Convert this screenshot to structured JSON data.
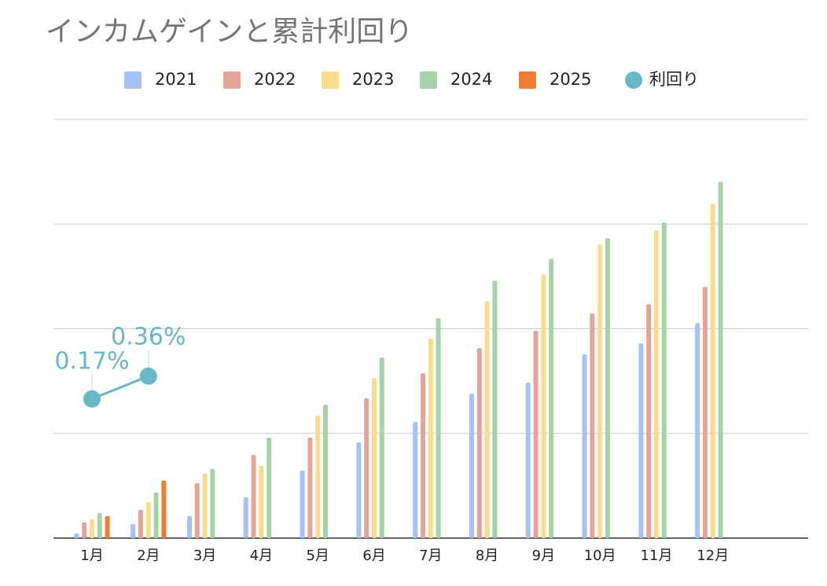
{
  "chart_data": {
    "type": "bar",
    "title": "インカムゲインと累計利回り",
    "categories": [
      "1月",
      "2月",
      "3月",
      "4月",
      "5月",
      "6月",
      "7月",
      "8月",
      "9月",
      "10月",
      "11月",
      "12月"
    ],
    "series": [
      {
        "name": "2021",
        "color": "#a4c2f4",
        "values": [
          0.045,
          0.135,
          0.21,
          0.39,
          0.645,
          0.915,
          1.11,
          1.38,
          1.485,
          1.755,
          1.86,
          2.055
        ]
      },
      {
        "name": "2022",
        "color": "#e6a39a",
        "values": [
          0.15,
          0.27,
          0.525,
          0.795,
          0.96,
          1.335,
          1.575,
          1.815,
          1.98,
          2.145,
          2.235,
          2.4
        ]
      },
      {
        "name": "2023",
        "color": "#f8dc8c",
        "values": [
          0.18,
          0.345,
          0.615,
          0.69,
          1.17,
          1.53,
          1.905,
          2.265,
          2.52,
          2.805,
          2.94,
          3.195
        ]
      },
      {
        "name": "2024",
        "color": "#a6d2a9",
        "values": [
          0.24,
          0.435,
          0.66,
          0.96,
          1.275,
          1.725,
          2.1,
          2.46,
          2.67,
          2.865,
          3.015,
          3.405
        ]
      },
      {
        "name": "2025",
        "color": "#f07b32",
        "values": [
          0.21,
          0.55,
          null,
          null,
          null,
          null,
          null,
          null,
          null,
          null,
          null,
          null
        ]
      },
      {
        "name": "利回り",
        "type": "line",
        "axis": "y2",
        "color": "#67b8c5",
        "values": [
          0.17,
          0.36,
          null,
          null,
          null,
          null,
          null,
          null,
          null,
          null,
          null,
          null
        ],
        "value_labels": [
          "0.17%",
          "0.36%",
          null,
          null,
          null,
          null,
          null,
          null,
          null,
          null,
          null,
          null
        ]
      }
    ],
    "ylim": [
      0,
      4
    ],
    "yticks": [
      0,
      1,
      2,
      3,
      4
    ],
    "ytick_labels": false,
    "y2lim": [
      -0.99,
      2.5
    ],
    "grid": true,
    "legend": "top"
  }
}
